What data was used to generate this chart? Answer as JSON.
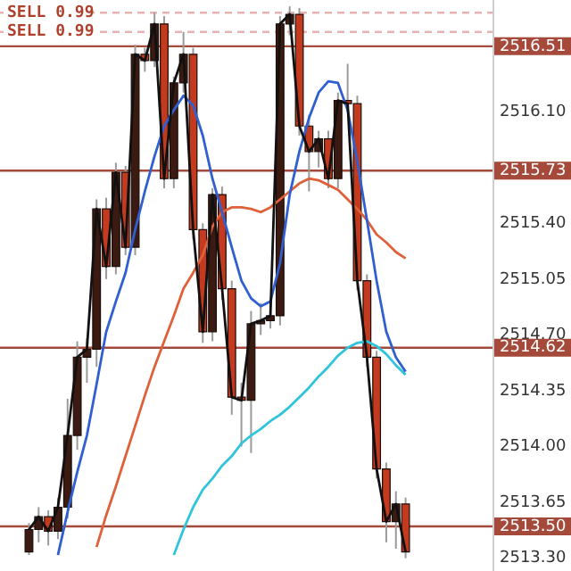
{
  "chart_data": {
    "type": "candlestick",
    "categories": [
      null,
      null,
      null,
      null,
      null,
      null,
      null,
      null,
      null,
      null,
      null,
      null,
      null,
      null,
      null,
      null,
      null,
      null,
      null,
      null,
      null,
      null,
      null,
      null,
      null,
      null,
      null,
      null,
      null,
      null,
      null,
      null,
      null,
      null,
      null,
      null,
      null,
      null,
      null,
      null,
      null,
      null,
      null,
      null,
      null,
      null,
      null,
      null,
      null,
      null,
      null,
      null
    ],
    "ohlc": [
      null,
      null,
      null,
      [
        2513.34,
        2513.52,
        2513.32,
        2513.48
      ],
      [
        2513.48,
        2513.62,
        2513.4,
        2513.56
      ],
      [
        2513.56,
        2513.6,
        2513.38,
        2513.47
      ],
      [
        2513.47,
        2513.68,
        2513.42,
        2513.62
      ],
      [
        2513.62,
        2514.3,
        2513.55,
        2514.07
      ],
      [
        2514.07,
        2514.66,
        2513.98,
        2514.56
      ],
      [
        2514.56,
        2514.68,
        2514.4,
        2514.61
      ],
      [
        2514.61,
        2515.55,
        2514.5,
        2515.49
      ],
      [
        2515.49,
        2515.56,
        2515.05,
        2515.13
      ],
      [
        2515.13,
        2515.78,
        2515.08,
        2515.72
      ],
      [
        2515.72,
        2515.76,
        2515.2,
        2515.25
      ],
      [
        2515.25,
        2516.52,
        2515.2,
        2516.46
      ],
      [
        2516.46,
        2516.5,
        2516.35,
        2516.42
      ],
      [
        2516.42,
        2516.72,
        2516.38,
        2516.65
      ],
      [
        2516.65,
        2516.7,
        2515.62,
        2515.68
      ],
      [
        2515.68,
        2516.32,
        2515.62,
        2516.28
      ],
      [
        2516.28,
        2516.6,
        2516.22,
        2516.46
      ],
      [
        2516.46,
        2516.5,
        2515.3,
        2515.36
      ],
      [
        2515.36,
        2515.4,
        2514.65,
        2514.72
      ],
      [
        2514.72,
        2515.62,
        2514.66,
        2515.58
      ],
      [
        2515.58,
        2515.63,
        2514.92,
        2514.99
      ],
      [
        2514.99,
        2515.04,
        2514.2,
        2514.31
      ],
      [
        2514.31,
        2514.4,
        2514.0,
        2514.29
      ],
      [
        2514.29,
        2514.85,
        2513.96,
        2514.77
      ],
      [
        2514.77,
        2514.9,
        2514.7,
        2514.79
      ],
      [
        2514.79,
        2514.92,
        2514.74,
        2514.82
      ],
      [
        2514.82,
        2516.7,
        2514.76,
        2516.65
      ],
      [
        2516.65,
        2516.76,
        2516.58,
        2516.71
      ],
      [
        2516.71,
        2516.75,
        2515.95,
        2516.01
      ],
      [
        2516.01,
        2516.08,
        2515.6,
        2515.85
      ],
      [
        2515.85,
        2515.98,
        2515.75,
        2515.93
      ],
      [
        2515.93,
        2515.98,
        2515.62,
        2515.68
      ],
      [
        2515.68,
        2516.22,
        2515.62,
        2516.17
      ],
      [
        2516.17,
        2516.4,
        2516.1,
        2516.15
      ],
      [
        2516.15,
        2516.2,
        2514.98,
        2515.04
      ],
      [
        2515.04,
        2515.08,
        2514.5,
        2514.56
      ],
      [
        2514.56,
        2514.6,
        2513.8,
        2513.86
      ],
      [
        2513.86,
        2513.9,
        2513.4,
        2513.53
      ],
      [
        2513.53,
        2513.72,
        2513.36,
        2513.64
      ],
      [
        2513.64,
        2513.68,
        2513.3,
        2513.34
      ],
      null,
      null,
      null,
      null,
      null,
      null,
      null,
      null,
      null
    ],
    "series": [
      {
        "type": "line",
        "color": "#111111",
        "values": [
          null,
          null,
          null,
          2513.48,
          2513.56,
          2513.47,
          2513.62,
          2514.07,
          2514.56,
          2514.61,
          2515.49,
          2515.13,
          2515.72,
          2515.25,
          2516.46,
          2516.42,
          2516.65,
          2515.68,
          2516.28,
          2516.46,
          2515.36,
          2514.72,
          2515.58,
          2514.99,
          2514.31,
          2514.29,
          2514.77,
          2514.79,
          2514.82,
          2516.65,
          2516.71,
          2516.01,
          2515.85,
          2515.93,
          2515.68,
          2516.17,
          2516.15,
          2515.04,
          2514.56,
          2513.86,
          2513.53,
          2513.64,
          2513.34,
          null,
          null,
          null,
          null,
          null,
          null,
          null,
          null,
          null
        ]
      },
      {
        "type": "line",
        "color": "#2f5fd0",
        "values": [
          null,
          null,
          null,
          null,
          null,
          null,
          2513.32,
          2513.59,
          2513.84,
          2514.07,
          2514.39,
          2514.72,
          2514.91,
          2515.09,
          2515.36,
          2515.6,
          2515.82,
          2516.01,
          2516.11,
          2516.2,
          2516.14,
          2515.95,
          2515.68,
          2515.47,
          2515.25,
          2515.04,
          2514.93,
          2514.88,
          2514.91,
          2515.15,
          2515.58,
          2515.85,
          2516.06,
          2516.22,
          2516.29,
          2516.28,
          2516.11,
          2515.79,
          2515.42,
          2515.04,
          2514.72,
          2514.56,
          2514.47,
          null,
          null,
          null,
          null,
          null,
          null,
          null,
          null,
          null
        ]
      },
      {
        "type": "line",
        "color": "#e0603a",
        "values": [
          null,
          null,
          null,
          null,
          null,
          null,
          null,
          null,
          null,
          null,
          2513.37,
          2513.57,
          2513.75,
          2513.94,
          2514.13,
          2514.32,
          2514.5,
          2514.66,
          2514.82,
          2514.99,
          2515.09,
          2515.2,
          2515.38,
          2515.47,
          2515.5,
          2515.5,
          2515.49,
          2515.47,
          2515.5,
          2515.55,
          2515.6,
          2515.65,
          2515.68,
          2515.67,
          2515.64,
          2515.61,
          2515.55,
          2515.49,
          2515.42,
          2515.33,
          2515.28,
          2515.22,
          2515.18,
          null,
          null,
          null,
          null,
          null,
          null,
          null,
          null,
          null
        ]
      },
      {
        "type": "line",
        "color": "#2ec4dc",
        "values": [
          null,
          null,
          null,
          null,
          null,
          null,
          null,
          null,
          null,
          null,
          null,
          null,
          null,
          null,
          null,
          null,
          null,
          null,
          2513.32,
          2513.48,
          2513.62,
          2513.73,
          2513.8,
          2513.88,
          2513.94,
          2514.02,
          2514.07,
          2514.11,
          2514.16,
          2514.2,
          2514.25,
          2514.31,
          2514.37,
          2514.44,
          2514.5,
          2514.57,
          2514.62,
          2514.65,
          2514.66,
          2514.63,
          2514.58,
          2514.51,
          2514.45,
          null,
          null,
          null,
          null,
          null,
          null,
          null,
          null,
          null
        ]
      }
    ],
    "ylim": [
      2513.22,
      2516.8
    ],
    "yticks": [
      {
        "value": 2513.3,
        "label": "2513.30"
      },
      {
        "value": 2513.65,
        "label": "2513.65"
      },
      {
        "value": 2514.0,
        "label": "2514.00"
      },
      {
        "value": 2514.35,
        "label": "2514.35"
      },
      {
        "value": 2514.7,
        "label": "2514.70"
      },
      {
        "value": 2515.05,
        "label": "2515.05"
      },
      {
        "value": 2515.4,
        "label": "2515.40"
      },
      {
        "value": 2516.1,
        "label": "2516.10"
      }
    ],
    "ref_lines": [
      {
        "axis": "y",
        "value": 2516.51,
        "label": "2516.51",
        "color": "#a5493a",
        "line_style": "solid"
      },
      {
        "axis": "y",
        "value": 2515.73,
        "label": "2515.73",
        "color": "#a5493a",
        "line_style": "solid"
      },
      {
        "axis": "y",
        "value": 2514.62,
        "label": "2514.62",
        "color": "#a5493a",
        "line_style": "solid"
      },
      {
        "axis": "y",
        "value": 2513.5,
        "label": "2513.50",
        "color": "#a5493a",
        "line_style": "solid"
      },
      {
        "axis": "y",
        "value": 2516.72,
        "label": "SELL 0.99",
        "color": "#e7b3b3",
        "line_style": "dashed"
      },
      {
        "axis": "y",
        "value": 2516.6,
        "label": "SELL 0.99",
        "color": "#e7b3b3",
        "line_style": "dashed"
      }
    ],
    "grid": false,
    "legend": false,
    "tick_labels": "y"
  }
}
